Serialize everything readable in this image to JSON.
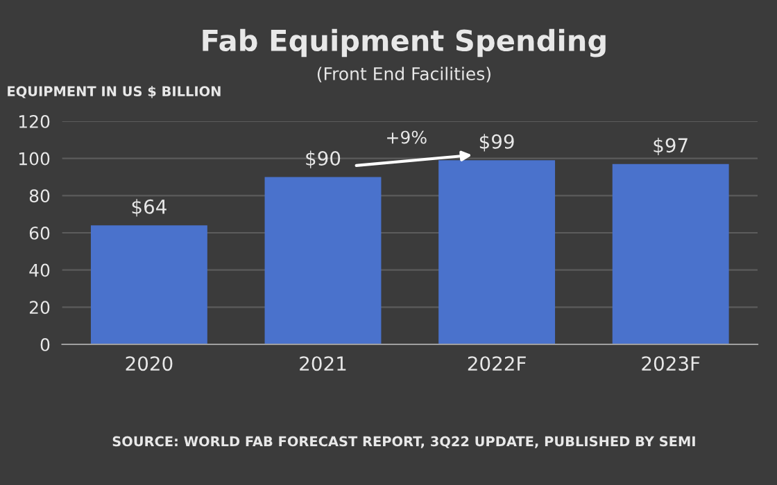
{
  "chart_data": {
    "type": "bar",
    "title": "Fab Equipment Spending",
    "subtitle": "(Front End Facilities)",
    "ylabel": "EQUIPMENT IN US $ BILLION",
    "categories": [
      "2020",
      "2021",
      "2022F",
      "2023F"
    ],
    "values": [
      64,
      90,
      99,
      97
    ],
    "color": "#4a72cc",
    "value_labels": [
      "$64",
      "$90",
      "$99",
      "$97"
    ],
    "ylim": [
      0,
      120
    ],
    "yticks": [
      0,
      20,
      40,
      60,
      80,
      100,
      120
    ],
    "grid": "y",
    "annotations": [
      "+9%",
      "SOURCE: WORLD FAB FORECAST REPORT, 3Q22 UPDATE, PUBLISHED BY SEMI"
    ]
  }
}
